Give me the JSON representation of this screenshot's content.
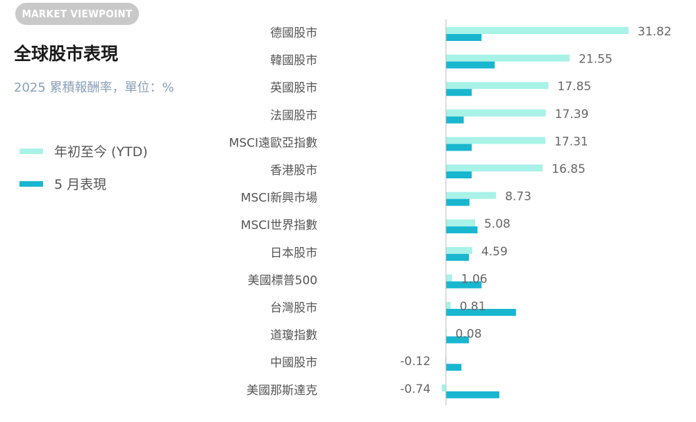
{
  "badge": "MARKET VIEWPOINT",
  "title": "全球股市表現",
  "subtitle": "2025 累積報酬率，單位：%",
  "legend": [
    {
      "label": "年初至今 (YTD)",
      "color": "#a8f2e8"
    },
    {
      "label": "5 月表現",
      "color": "#19b6cf"
    }
  ],
  "chart_data": {
    "type": "bar",
    "orientation": "horizontal",
    "categories": [
      "德國股市",
      "韓國股市",
      "英國股市",
      "法國股市",
      "MSCI遠歐亞指數",
      "香港股市",
      "MSCI新興市場",
      "MSCI世界指數",
      "日本股市",
      "美國標普500",
      "台灣股市",
      "道瓊指數",
      "中國股市",
      "美國那斯達克"
    ],
    "series": [
      {
        "name": "年初至今 (YTD)",
        "color": "#a8f2e8",
        "values": [
          31.82,
          21.55,
          17.85,
          17.39,
          17.31,
          16.85,
          8.73,
          5.08,
          4.59,
          1.06,
          0.81,
          0.08,
          -0.12,
          -0.74
        ]
      },
      {
        "name": "5 月表現",
        "color": "#19b6cf",
        "values": [
          6.2,
          8.5,
          4.5,
          3.1,
          4.5,
          4.5,
          4.1,
          5.5,
          4.0,
          6.2,
          12.2,
          4.0,
          2.7,
          9.3
        ]
      }
    ],
    "data_labels": [
      "31.82",
      "21.55",
      "17.85",
      "17.39",
      "17.31",
      "16.85",
      "8.73",
      "5.08",
      "4.59",
      "1.06",
      "0.81",
      "0.08",
      "-0.12",
      "-0.74"
    ],
    "xlim": [
      -1,
      32
    ]
  }
}
